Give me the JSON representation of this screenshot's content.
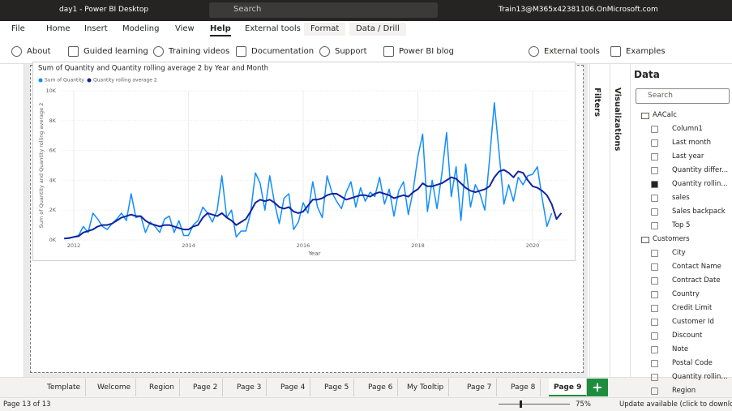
{
  "title_bar": {
    "title": "day1 - Power BI Desktop",
    "search": "Search",
    "user": "Train13@M365x42381106.OnMicrosoft.com"
  },
  "menu": {
    "tabs": [
      "File",
      "Home",
      "Insert",
      "Modeling",
      "View",
      "Help",
      "External tools",
      "Format",
      "Data / Drill"
    ],
    "active": 5
  },
  "ribbon": {
    "buttons": [
      "About",
      "Guided learning",
      "Training videos",
      "Documentation",
      "Support",
      "Power BI blog",
      "External tools",
      "Examples"
    ]
  },
  "chart_data": {
    "type": "line",
    "title": "Sum of Quantity and Quantity rolling average 2 by Year and Month",
    "x_label": "Year",
    "y_label": "Sum of Quantity and Quantity rolling average 2",
    "x": [
      2011.833,
      2011.917,
      2012,
      2012.083,
      2012.167,
      2012.25,
      2012.333,
      2012.417,
      2012.5,
      2012.583,
      2012.667,
      2012.75,
      2012.833,
      2012.917,
      2013,
      2013.083,
      2013.167,
      2013.25,
      2013.333,
      2013.417,
      2013.5,
      2013.583,
      2013.667,
      2013.75,
      2013.833,
      2013.917,
      2014,
      2014.083,
      2014.167,
      2014.25,
      2014.333,
      2014.417,
      2014.5,
      2014.583,
      2014.667,
      2014.75,
      2014.833,
      2014.917,
      2015,
      2015.083,
      2015.167,
      2015.25,
      2015.333,
      2015.417,
      2015.5,
      2015.583,
      2015.667,
      2015.75,
      2015.833,
      2015.917,
      2016,
      2016.083,
      2016.167,
      2016.25,
      2016.333,
      2016.417,
      2016.5,
      2016.583,
      2016.667,
      2016.75,
      2016.833,
      2016.917,
      2017,
      2017.083,
      2017.167,
      2017.25,
      2017.333,
      2017.417,
      2017.5,
      2017.583,
      2017.667,
      2017.75,
      2017.833,
      2017.917,
      2018,
      2018.083,
      2018.167,
      2018.25,
      2018.333,
      2018.417,
      2018.5,
      2018.583,
      2018.667,
      2018.75,
      2018.833,
      2018.917,
      2019,
      2019.083,
      2019.167,
      2019.25,
      2019.333,
      2019.417,
      2019.5,
      2019.583,
      2019.667,
      2019.75,
      2019.833,
      2019.917,
      2020,
      2020.083,
      2020.167,
      2020.25,
      2020.333,
      2020.417,
      2020.5
    ],
    "series": [
      {
        "name": "Sum of Quantity",
        "color": "#118dff",
        "values": [
          100,
          150,
          200,
          300,
          900,
          500,
          1800,
          1400,
          900,
          700,
          1100,
          1400,
          1800,
          1300,
          3100,
          1500,
          1600,
          500,
          1200,
          900,
          500,
          1400,
          1600,
          500,
          1300,
          300,
          300,
          1000,
          1300,
          2200,
          1800,
          1200,
          2000,
          4300,
          1500,
          2000,
          200,
          600,
          600,
          1800,
          4500,
          3800,
          2000,
          4300,
          2500,
          1100,
          2800,
          3100,
          700,
          1200,
          2500,
          1800,
          3900,
          2200,
          1500,
          4300,
          3200,
          2600,
          2100,
          3200,
          3900,
          2200,
          3500,
          2600,
          3200,
          2900,
          4200,
          2400,
          3400,
          1600,
          3300,
          3900,
          1700,
          3300,
          5600,
          7100,
          1900,
          4000,
          2100,
          4400,
          7200,
          2900,
          4900,
          1300,
          5100,
          2200,
          3700,
          3100,
          2000,
          5400,
          9200,
          5800,
          2400,
          3700,
          2600,
          4200,
          3700,
          4300,
          4400,
          4900,
          2800,
          900,
          1800,
          null,
          null
        ]
      },
      {
        "name": "Quantity rolling average 2",
        "color": "#12239e",
        "values": [
          100,
          120,
          200,
          250,
          500,
          600,
          700,
          900,
          1000,
          1000,
          1100,
          1300,
          1500,
          1600,
          1700,
          1600,
          1600,
          1300,
          1100,
          1000,
          900,
          1000,
          1000,
          900,
          800,
          700,
          700,
          900,
          1000,
          1500,
          1800,
          1700,
          1600,
          1800,
          1500,
          1300,
          1000,
          1200,
          1400,
          1900,
          2500,
          2700,
          2600,
          2700,
          2500,
          2200,
          2100,
          2200,
          1900,
          1800,
          1900,
          2300,
          2700,
          2700,
          2800,
          3000,
          3100,
          3100,
          2900,
          2700,
          2800,
          2900,
          3000,
          3000,
          2900,
          3100,
          3200,
          3100,
          3000,
          2800,
          2900,
          3000,
          2900,
          3200,
          3400,
          3800,
          3600,
          3600,
          3700,
          3800,
          4000,
          4200,
          4100,
          3800,
          3500,
          3300,
          3200,
          3300,
          3400,
          3600,
          4200,
          4600,
          4700,
          4500,
          4200,
          4600,
          4500,
          4000,
          3600,
          3500,
          3300,
          3000,
          2400,
          1400,
          1800
        ]
      }
    ],
    "xlim": [
      2011.8,
      2020.6
    ],
    "xticks": [
      2012,
      2014,
      2016,
      2018,
      2020
    ],
    "ylim": [
      0,
      10000
    ],
    "yticks": [
      {
        "value": 0,
        "label": "0K"
      },
      {
        "value": 2000,
        "label": "2K"
      },
      {
        "value": 4000,
        "label": "4K"
      },
      {
        "value": 6000,
        "label": "6K"
      },
      {
        "value": 8000,
        "label": "8K"
      },
      {
        "value": 10000,
        "label": "10K"
      }
    ],
    "grid": true
  },
  "panes": {
    "filters": "Filters",
    "visualizations": "Visualizations"
  },
  "data_pane": {
    "title": "Data",
    "search": "Search",
    "tables": [
      {
        "name": "AACalc",
        "fields": [
          "Column1",
          "Last month",
          "Last year",
          "Quantity differ...",
          "Quantity rollin...",
          "sales",
          "Sales backpack",
          "Top 5"
        ],
        "checked": 4
      },
      {
        "name": "Customers",
        "fields": [
          "City",
          "Contact Name",
          "Contract Date",
          "Country",
          "Credit Limit",
          "Customer Id",
          "Discount",
          "Note",
          "Postal Code",
          "Quantity rollin...",
          "Region"
        ]
      }
    ]
  },
  "page_tabs": {
    "tabs": [
      "Template",
      "Welcome",
      "Region",
      "Page 2",
      "Page 3",
      "Page 4",
      "Page 5",
      "Page 6",
      "My Tooltip",
      "Page 7",
      "Page 8",
      "Page 9"
    ],
    "active": 11
  },
  "status_bar": {
    "page": "Page 13 of 13",
    "zoom": "75%",
    "update": "Update available (click to download)"
  }
}
